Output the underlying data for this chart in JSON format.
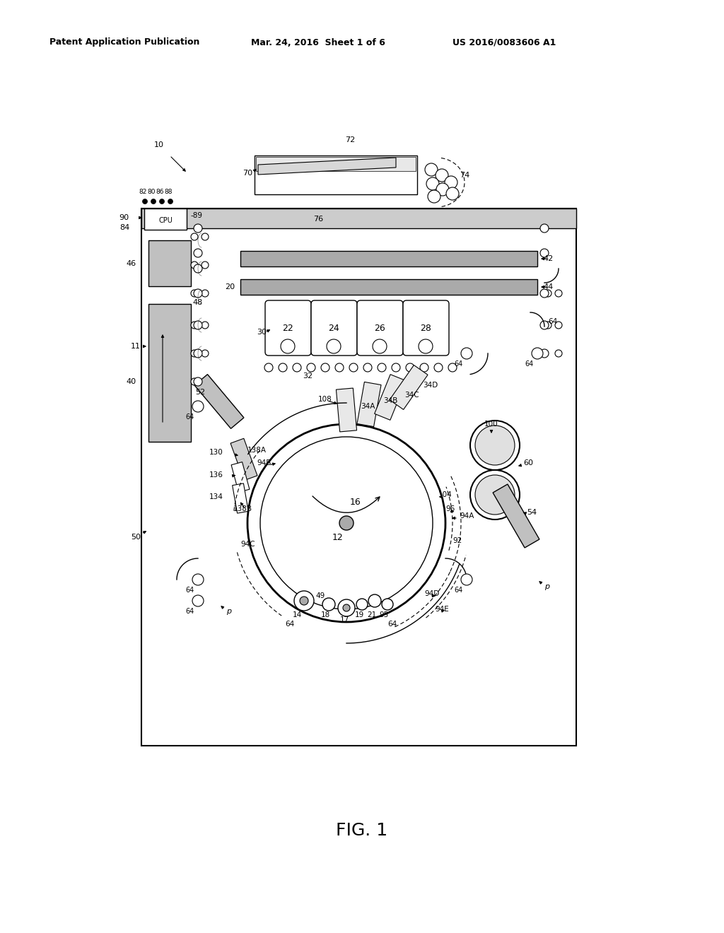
{
  "header_left": "Patent Application Publication",
  "header_mid": "Mar. 24, 2016  Sheet 1 of 6",
  "header_right": "US 2016/0083606 A1",
  "caption": "FIG. 1",
  "bg_color": "#ffffff",
  "lc": "#000000",
  "gc": "#888888",
  "lgc": "#cccccc",
  "dgc": "#555555",
  "hatch_color": "#999999"
}
